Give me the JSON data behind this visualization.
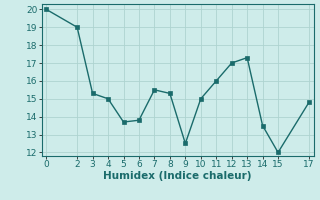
{
  "x": [
    0,
    2,
    3,
    4,
    5,
    6,
    7,
    8,
    9,
    10,
    11,
    12,
    13,
    14,
    15,
    17
  ],
  "y": [
    20,
    19,
    15.3,
    15.0,
    13.7,
    13.8,
    15.5,
    15.3,
    12.5,
    15.0,
    16.0,
    17.0,
    17.3,
    13.5,
    12.0,
    14.8
  ],
  "xlim": [
    -0.3,
    17.3
  ],
  "ylim": [
    11.8,
    20.3
  ],
  "xticks": [
    0,
    2,
    3,
    4,
    5,
    6,
    7,
    8,
    9,
    10,
    11,
    12,
    13,
    14,
    15,
    17
  ],
  "yticks": [
    12,
    13,
    14,
    15,
    16,
    17,
    18,
    19,
    20
  ],
  "xlabel": "Humidex (Indice chaleur)",
  "line_color": "#1a6b6b",
  "marker_color": "#1a6b6b",
  "bg_color": "#ceecea",
  "grid_color": "#aed4d0",
  "xlabel_fontsize": 7.5,
  "tick_fontsize": 6.5
}
